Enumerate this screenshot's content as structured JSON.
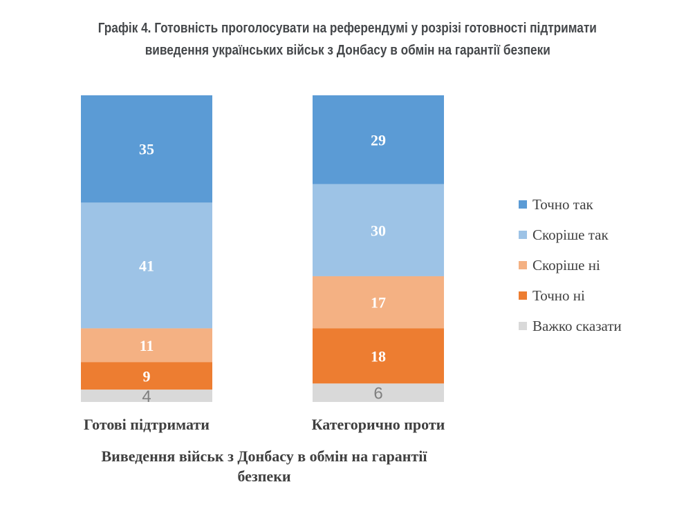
{
  "title_line1": "Графік 4. Готовність проголосувати на референдумі у розрізі готовності підтримати",
  "title_line2": "виведення українських військ з Донбасу в обмін на гарантії безпеки",
  "chart_data": {
    "type": "bar",
    "stacked": true,
    "categories": [
      "Готові підтримати",
      "Категорично проти"
    ],
    "xlabel_line1": "Виведення військ з Донбасу в обмін на гарантії",
    "xlabel_line2": "безпеки",
    "ylabel": "",
    "ylim": [
      0,
      100
    ],
    "grid": false,
    "legend_placement": "right",
    "series": [
      {
        "name": "Точно так",
        "color": "#5B9BD5",
        "label_color": "#FFFFFF",
        "values": [
          35,
          29
        ]
      },
      {
        "name": "Скоріше так",
        "color": "#9DC3E6",
        "label_color": "#FFFFFF",
        "values": [
          41,
          30
        ]
      },
      {
        "name": "Скоріше ні",
        "color": "#F4B183",
        "label_color": "#FFFFFF",
        "values": [
          11,
          17
        ]
      },
      {
        "name": "Точно ні",
        "color": "#ED7D31",
        "label_color": "#FFFFFF",
        "values": [
          9,
          18
        ]
      },
      {
        "name": "Важко сказати",
        "color": "#D9D9D9",
        "label_color": "#7F7F7F",
        "values": [
          4,
          6
        ]
      }
    ]
  }
}
